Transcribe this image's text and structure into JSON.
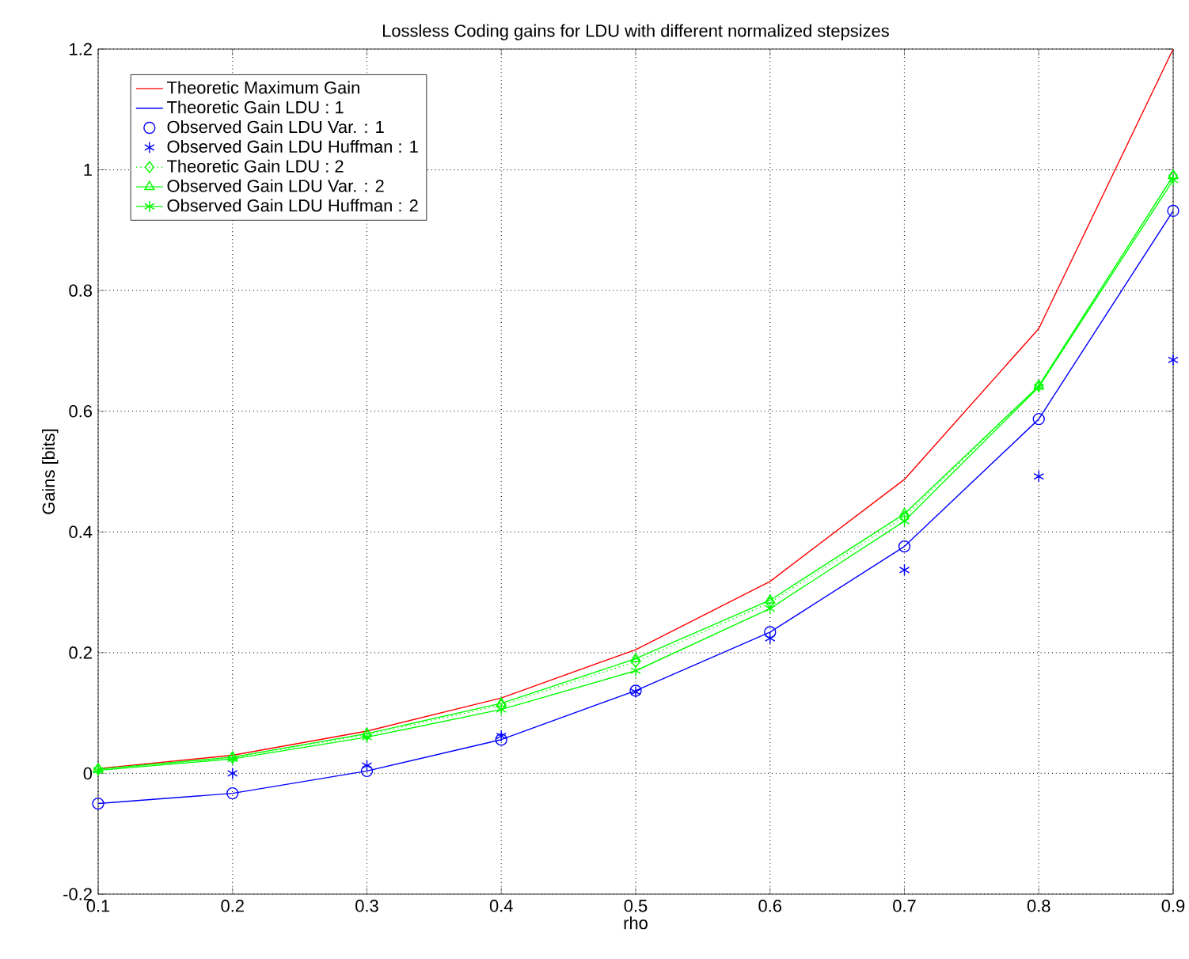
{
  "chart_data": {
    "type": "line",
    "title": "Lossless Coding gains for LDU with different normalized stepsizes",
    "xlabel": "rho",
    "ylabel": "Gains [bits]",
    "x": [
      0.1,
      0.2,
      0.3,
      0.4,
      0.5,
      0.6,
      0.7,
      0.8,
      0.9
    ],
    "series": [
      {
        "name": "Theoretic Maximum Gain",
        "color": "#ff0000",
        "marker": "none",
        "line_style": "solid",
        "values": [
          0.008,
          0.03,
          0.07,
          0.125,
          0.205,
          0.318,
          0.487,
          0.737,
          1.2
        ]
      },
      {
        "name": "Theoretic Gain LDU : 1",
        "color": "#0000ff",
        "marker": "none",
        "line_style": "solid",
        "values": [
          -0.05,
          -0.033,
          0.004,
          0.056,
          0.137,
          0.234,
          0.376,
          0.587,
          0.932
        ]
      },
      {
        "name": "Observed Gain LDU Var. : 1",
        "type": "scatter",
        "color": "#0000ff",
        "marker": "circle",
        "line_style": "dotted",
        "values": [
          -0.05,
          -0.033,
          0.004,
          0.056,
          0.137,
          0.234,
          0.376,
          0.587,
          0.932
        ]
      },
      {
        "name": "Observed Gain LDU Huffman : 1",
        "type": "scatter",
        "color": "#0000ff",
        "marker": "cross",
        "values": [
          null,
          0.0,
          0.013,
          0.062,
          0.135,
          0.224,
          0.337,
          0.492,
          0.685
        ]
      },
      {
        "name": "Theoretic Gain LDU : 2",
        "color": "#00ff00",
        "marker": "diamond",
        "line_style": "dotted",
        "values": [
          0.007,
          0.026,
          0.064,
          0.113,
          0.185,
          0.283,
          0.425,
          0.642,
          0.99
        ]
      },
      {
        "name": "Observed Gain LDU Var. : 2",
        "color": "#00ff00",
        "marker": "triangle",
        "line_style": "solid",
        "values": [
          0.007,
          0.027,
          0.066,
          0.116,
          0.19,
          0.287,
          0.43,
          0.642,
          0.99
        ]
      },
      {
        "name": "Observed Gain LDU Huffman : 2",
        "color": "#00ff00",
        "marker": "cross",
        "line_style": "solid",
        "values": [
          0.005,
          0.024,
          0.06,
          0.106,
          0.17,
          0.273,
          0.418,
          0.64,
          0.983
        ]
      }
    ],
    "xlim": [
      0.1,
      0.9
    ],
    "ylim": [
      -0.2,
      1.2
    ],
    "xticks": [
      0.1,
      0.2,
      0.3,
      0.4,
      0.5,
      0.6,
      0.7,
      0.8,
      0.9
    ],
    "yticks": [
      -0.2,
      0,
      0.2,
      0.4,
      0.6,
      0.8,
      1,
      1.2
    ],
    "grid": true,
    "legend": "top left"
  }
}
